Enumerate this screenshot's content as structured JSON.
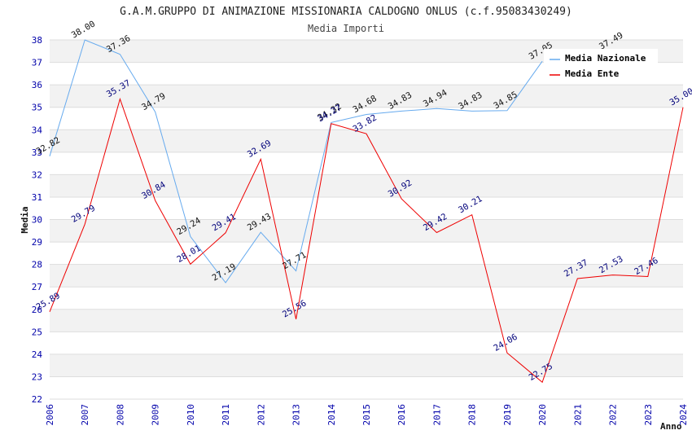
{
  "chart_data": {
    "type": "line",
    "title": "G.A.M.GRUPPO DI ANIMAZIONE MISSIONARIA CALDOGNO ONLUS (c.f.95083430249)",
    "subtitle": "Media Importi",
    "xlabel": "Anno",
    "ylabel": "Media",
    "ylim": [
      22,
      38
    ],
    "yticks": [
      "22",
      "23",
      "24",
      "25",
      "26",
      "27",
      "28",
      "29",
      "30",
      "31",
      "32",
      "33",
      "34",
      "35",
      "36",
      "37",
      "38"
    ],
    "categories": [
      "2006",
      "2007",
      "2008",
      "2009",
      "2010",
      "2011",
      "2012",
      "2013",
      "2014",
      "2015",
      "2016",
      "2017",
      "2018",
      "2019",
      "2020",
      "2021",
      "2022",
      "2023",
      "2024"
    ],
    "legend_position": "top-right",
    "series": [
      {
        "name": "Media Nazionale",
        "color": "#66aaee",
        "values": [
          32.82,
          38.0,
          37.36,
          34.79,
          29.24,
          27.19,
          29.43,
          27.71,
          34.32,
          34.68,
          34.83,
          34.94,
          34.83,
          34.85,
          37.05,
          null,
          37.49,
          null,
          null
        ],
        "labels": [
          "32.82",
          "38.00",
          "37.36",
          "34.79",
          "29.24",
          "27.19",
          "29.43",
          "27.71",
          "34.32",
          "34.68",
          "34.83",
          "34.94",
          "34.83",
          "34.85",
          "37.05",
          "",
          "37.49",
          "",
          ""
        ]
      },
      {
        "name": "Media Ente",
        "color": "#ee0000",
        "values": [
          25.89,
          29.79,
          35.37,
          30.84,
          28.01,
          29.41,
          32.69,
          25.56,
          34.27,
          33.82,
          30.92,
          29.42,
          30.21,
          24.06,
          22.75,
          27.37,
          27.53,
          27.46,
          35.0
        ],
        "labels": [
          "25.89",
          "29.79",
          "35.37",
          "30.84",
          "28.01",
          "29.41",
          "32.69",
          "25.56",
          "34.27",
          "33.82",
          "30.92",
          "29.42",
          "30.21",
          "24.06",
          "22.75",
          "27.37",
          "27.53",
          "27.46",
          "35.00"
        ]
      }
    ]
  }
}
